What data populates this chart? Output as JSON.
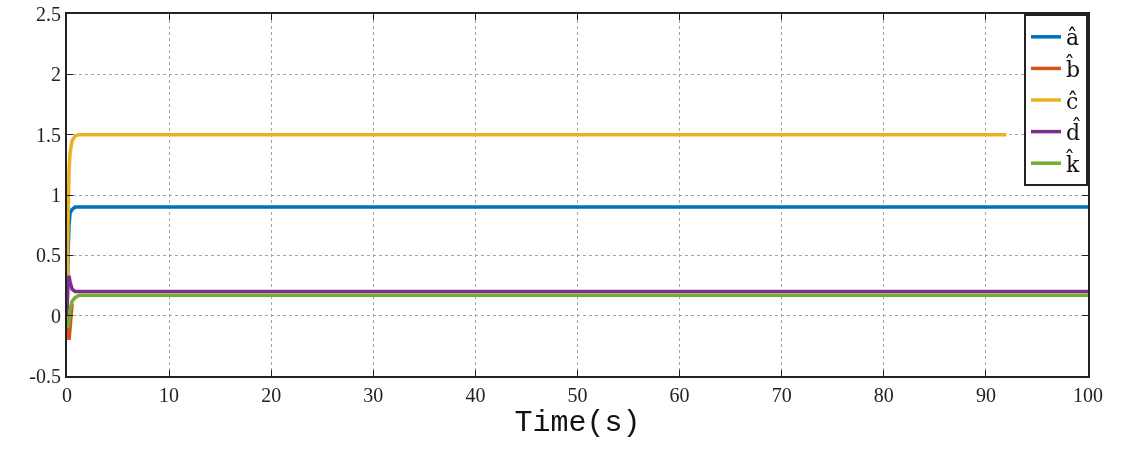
{
  "chart_data": {
    "type": "line",
    "xlabel": "Time(s)",
    "x": [
      0,
      0.1,
      0.2,
      0.3,
      0.5,
      0.8,
      1.2,
      2,
      3,
      100
    ],
    "series": [
      {
        "name": "â",
        "color": "#0072bd",
        "values": [
          0,
          0.5,
          0.75,
          0.85,
          0.88,
          0.9,
          0.9,
          0.9,
          0.9,
          0.9
        ]
      },
      {
        "name": "b̂",
        "color": "#d95319",
        "values": [
          0,
          -0.15,
          -0.2,
          -0.1,
          0.1,
          null,
          null,
          null,
          null,
          null
        ]
      },
      {
        "name": "ĉ",
        "color": "#edb120",
        "x": [
          0,
          0.1,
          0.2,
          0.3,
          0.5,
          0.8,
          1.2,
          2,
          3,
          92
        ],
        "values": [
          0,
          0.8,
          1.2,
          1.35,
          1.45,
          1.49,
          1.5,
          1.5,
          1.5,
          1.5
        ]
      },
      {
        "name": "d̂",
        "color": "#7e2f8e",
        "values": [
          0,
          0.3,
          0.33,
          0.28,
          0.22,
          0.2,
          0.2,
          0.2,
          0.2,
          0.2
        ]
      },
      {
        "name": "k̂",
        "color": "#77ac30",
        "values": [
          0,
          -0.1,
          -0.05,
          0.05,
          0.12,
          0.15,
          0.17,
          0.17,
          0.17,
          0.17
        ]
      }
    ],
    "xlim": [
      0,
      100
    ],
    "xticks": [
      0,
      10,
      20,
      30,
      40,
      50,
      60,
      70,
      80,
      90,
      100
    ],
    "ylim": [
      -0.5,
      2.5
    ],
    "yticks": [
      -0.5,
      0,
      0.5,
      1,
      1.5,
      2,
      2.5
    ],
    "grid": true,
    "legend": "top right",
    "line_style": "solid",
    "marker": "none"
  }
}
